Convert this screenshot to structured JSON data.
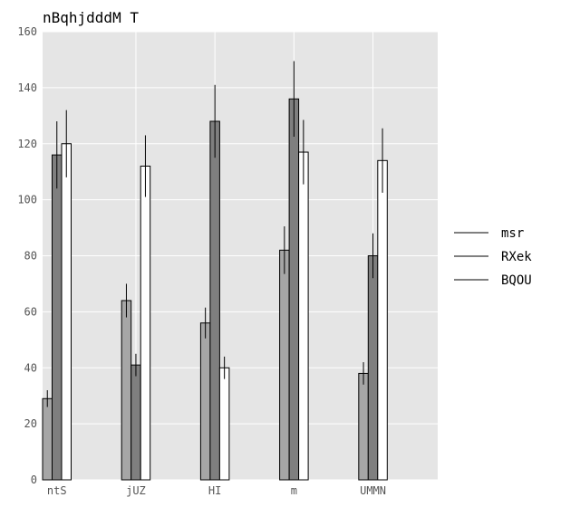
{
  "chart_data": {
    "type": "bar",
    "title": "nBqhjdddM T",
    "xlabel": "",
    "ylabel": "",
    "ylim": [
      0,
      160
    ],
    "yticks": [
      0,
      20,
      40,
      60,
      80,
      100,
      120,
      140,
      160
    ],
    "grid": true,
    "legend_position": "right",
    "categories": [
      "ntS",
      "jUZ",
      "HI",
      "m",
      "UMMN"
    ],
    "series": [
      {
        "name": "msr",
        "color": "#a6a6a6",
        "values": [
          29,
          64,
          56,
          82,
          38
        ],
        "errors": [
          3,
          6,
          5.5,
          8.5,
          4
        ]
      },
      {
        "name": "RXek",
        "color": "#7f7f7f",
        "values": [
          116,
          41,
          128,
          136,
          80
        ],
        "errors": [
          12,
          4,
          13,
          13.5,
          8
        ]
      },
      {
        "name": "BQOU",
        "color": "#ffffff",
        "values": [
          120,
          112,
          40,
          117,
          114
        ],
        "errors": [
          12,
          11,
          4,
          11.5,
          11.5
        ]
      }
    ]
  }
}
